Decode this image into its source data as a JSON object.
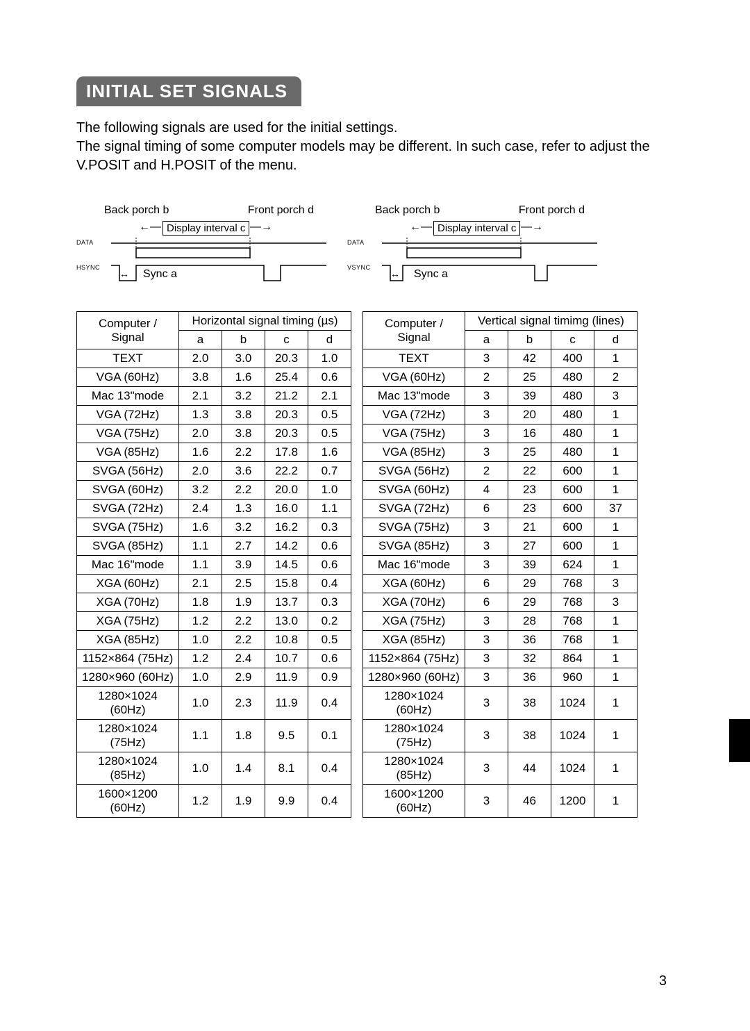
{
  "title": "INITIAL SET SIGNALS",
  "intro_line1": "The following signals are used for the initial settings.",
  "intro_line2": "The signal timing of some computer models may be different. In such case, refer to adjust the V.POSIT and H.POSIT of the menu.",
  "diagram": {
    "back_porch": "Back porch b",
    "front_porch": "Front porch d",
    "display_interval": "Display interval c",
    "data_label": "DATA",
    "hsync_label": "HSYNC",
    "vsync_label": "VSYNC",
    "sync_label": "Sync a"
  },
  "horizontal": {
    "header_main": "Computer / Signal",
    "header_group": "Horizontal signal timing (µs)",
    "cols": [
      "a",
      "b",
      "c",
      "d"
    ],
    "rows": [
      [
        "TEXT",
        "2.0",
        "3.0",
        "20.3",
        "1.0"
      ],
      [
        "VGA (60Hz)",
        "3.8",
        "1.6",
        "25.4",
        "0.6"
      ],
      [
        "Mac 13\"mode",
        "2.1",
        "3.2",
        "21.2",
        "2.1"
      ],
      [
        "VGA (72Hz)",
        "1.3",
        "3.8",
        "20.3",
        "0.5"
      ],
      [
        "VGA (75Hz)",
        "2.0",
        "3.8",
        "20.3",
        "0.5"
      ],
      [
        "VGA (85Hz)",
        "1.6",
        "2.2",
        "17.8",
        "1.6"
      ],
      [
        "SVGA (56Hz)",
        "2.0",
        "3.6",
        "22.2",
        "0.7"
      ],
      [
        "SVGA (60Hz)",
        "3.2",
        "2.2",
        "20.0",
        "1.0"
      ],
      [
        "SVGA (72Hz)",
        "2.4",
        "1.3",
        "16.0",
        "1.1"
      ],
      [
        "SVGA (75Hz)",
        "1.6",
        "3.2",
        "16.2",
        "0.3"
      ],
      [
        "SVGA (85Hz)",
        "1.1",
        "2.7",
        "14.2",
        "0.6"
      ],
      [
        "Mac 16\"mode",
        "1.1",
        "3.9",
        "14.5",
        "0.6"
      ],
      [
        "XGA (60Hz)",
        "2.1",
        "2.5",
        "15.8",
        "0.4"
      ],
      [
        "XGA (70Hz)",
        "1.8",
        "1.9",
        "13.7",
        "0.3"
      ],
      [
        "XGA (75Hz)",
        "1.2",
        "2.2",
        "13.0",
        "0.2"
      ],
      [
        "XGA (85Hz)",
        "1.0",
        "2.2",
        "10.8",
        "0.5"
      ],
      [
        "1152×864 (75Hz)",
        "1.2",
        "2.4",
        "10.7",
        "0.6"
      ],
      [
        "1280×960 (60Hz)",
        "1.0",
        "2.9",
        "11.9",
        "0.9"
      ],
      [
        "1280×1024 (60Hz)",
        "1.0",
        "2.3",
        "11.9",
        "0.4"
      ],
      [
        "1280×1024 (75Hz)",
        "1.1",
        "1.8",
        "9.5",
        "0.1"
      ],
      [
        "1280×1024 (85Hz)",
        "1.0",
        "1.4",
        "8.1",
        "0.4"
      ],
      [
        "1600×1200 (60Hz)",
        "1.2",
        "1.9",
        "9.9",
        "0.4"
      ]
    ]
  },
  "vertical": {
    "header_main": "Computer / Signal",
    "header_group": "Vertical signal timimg (lines)",
    "cols": [
      "a",
      "b",
      "c",
      "d"
    ],
    "rows": [
      [
        "TEXT",
        "3",
        "42",
        "400",
        "1"
      ],
      [
        "VGA (60Hz)",
        "2",
        "25",
        "480",
        "2"
      ],
      [
        "Mac 13\"mode",
        "3",
        "39",
        "480",
        "3"
      ],
      [
        "VGA (72Hz)",
        "3",
        "20",
        "480",
        "1"
      ],
      [
        "VGA (75Hz)",
        "3",
        "16",
        "480",
        "1"
      ],
      [
        "VGA (85Hz)",
        "3",
        "25",
        "480",
        "1"
      ],
      [
        "SVGA (56Hz)",
        "2",
        "22",
        "600",
        "1"
      ],
      [
        "SVGA (60Hz)",
        "4",
        "23",
        "600",
        "1"
      ],
      [
        "SVGA (72Hz)",
        "6",
        "23",
        "600",
        "37"
      ],
      [
        "SVGA (75Hz)",
        "3",
        "21",
        "600",
        "1"
      ],
      [
        "SVGA (85Hz)",
        "3",
        "27",
        "600",
        "1"
      ],
      [
        "Mac 16\"mode",
        "3",
        "39",
        "624",
        "1"
      ],
      [
        "XGA (60Hz)",
        "6",
        "29",
        "768",
        "3"
      ],
      [
        "XGA (70Hz)",
        "6",
        "29",
        "768",
        "3"
      ],
      [
        "XGA (75Hz)",
        "3",
        "28",
        "768",
        "1"
      ],
      [
        "XGA (85Hz)",
        "3",
        "36",
        "768",
        "1"
      ],
      [
        "1152×864 (75Hz)",
        "3",
        "32",
        "864",
        "1"
      ],
      [
        "1280×960 (60Hz)",
        "3",
        "36",
        "960",
        "1"
      ],
      [
        "1280×1024 (60Hz)",
        "3",
        "38",
        "1024",
        "1"
      ],
      [
        "1280×1024 (75Hz)",
        "3",
        "38",
        "1024",
        "1"
      ],
      [
        "1280×1024 (85Hz)",
        "3",
        "44",
        "1024",
        "1"
      ],
      [
        "1600×1200 (60Hz)",
        "3",
        "46",
        "1200",
        "1"
      ]
    ]
  },
  "page_number": "3"
}
